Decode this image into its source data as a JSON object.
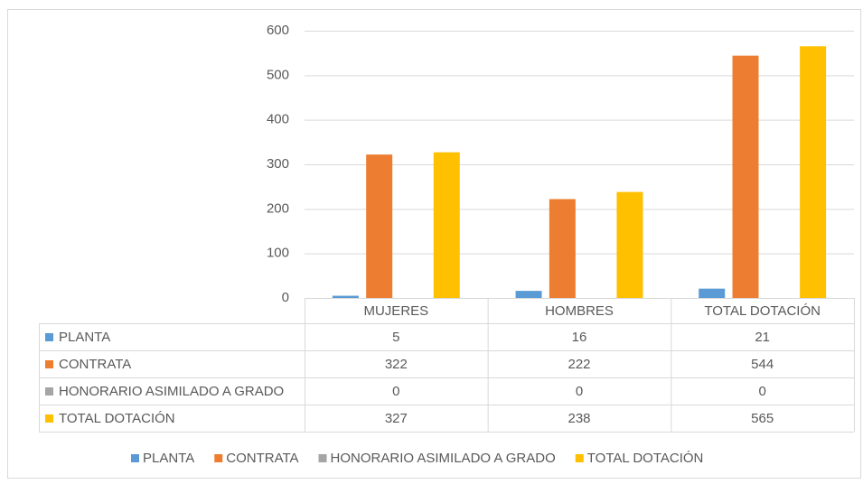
{
  "chart_data": {
    "type": "bar",
    "categories": [
      "MUJERES",
      "HOMBRES",
      "TOTAL DOTACIÓN"
    ],
    "series": [
      {
        "name": "PLANTA",
        "color": "#5b9bd5",
        "values": [
          5,
          16,
          21
        ]
      },
      {
        "name": "CONTRATA",
        "color": "#ed7d31",
        "values": [
          322,
          222,
          544
        ]
      },
      {
        "name": "HONORARIO ASIMILADO A GRADO",
        "color": "#a5a5a5",
        "values": [
          0,
          0,
          0
        ]
      },
      {
        "name": "TOTAL DOTACIÓN",
        "color": "#ffc000",
        "values": [
          327,
          238,
          565
        ]
      }
    ],
    "ylim": [
      0,
      600
    ],
    "yticks": [
      0,
      100,
      200,
      300,
      400,
      500,
      600
    ],
    "grid": true,
    "legend": "bottom",
    "data_table": true
  }
}
